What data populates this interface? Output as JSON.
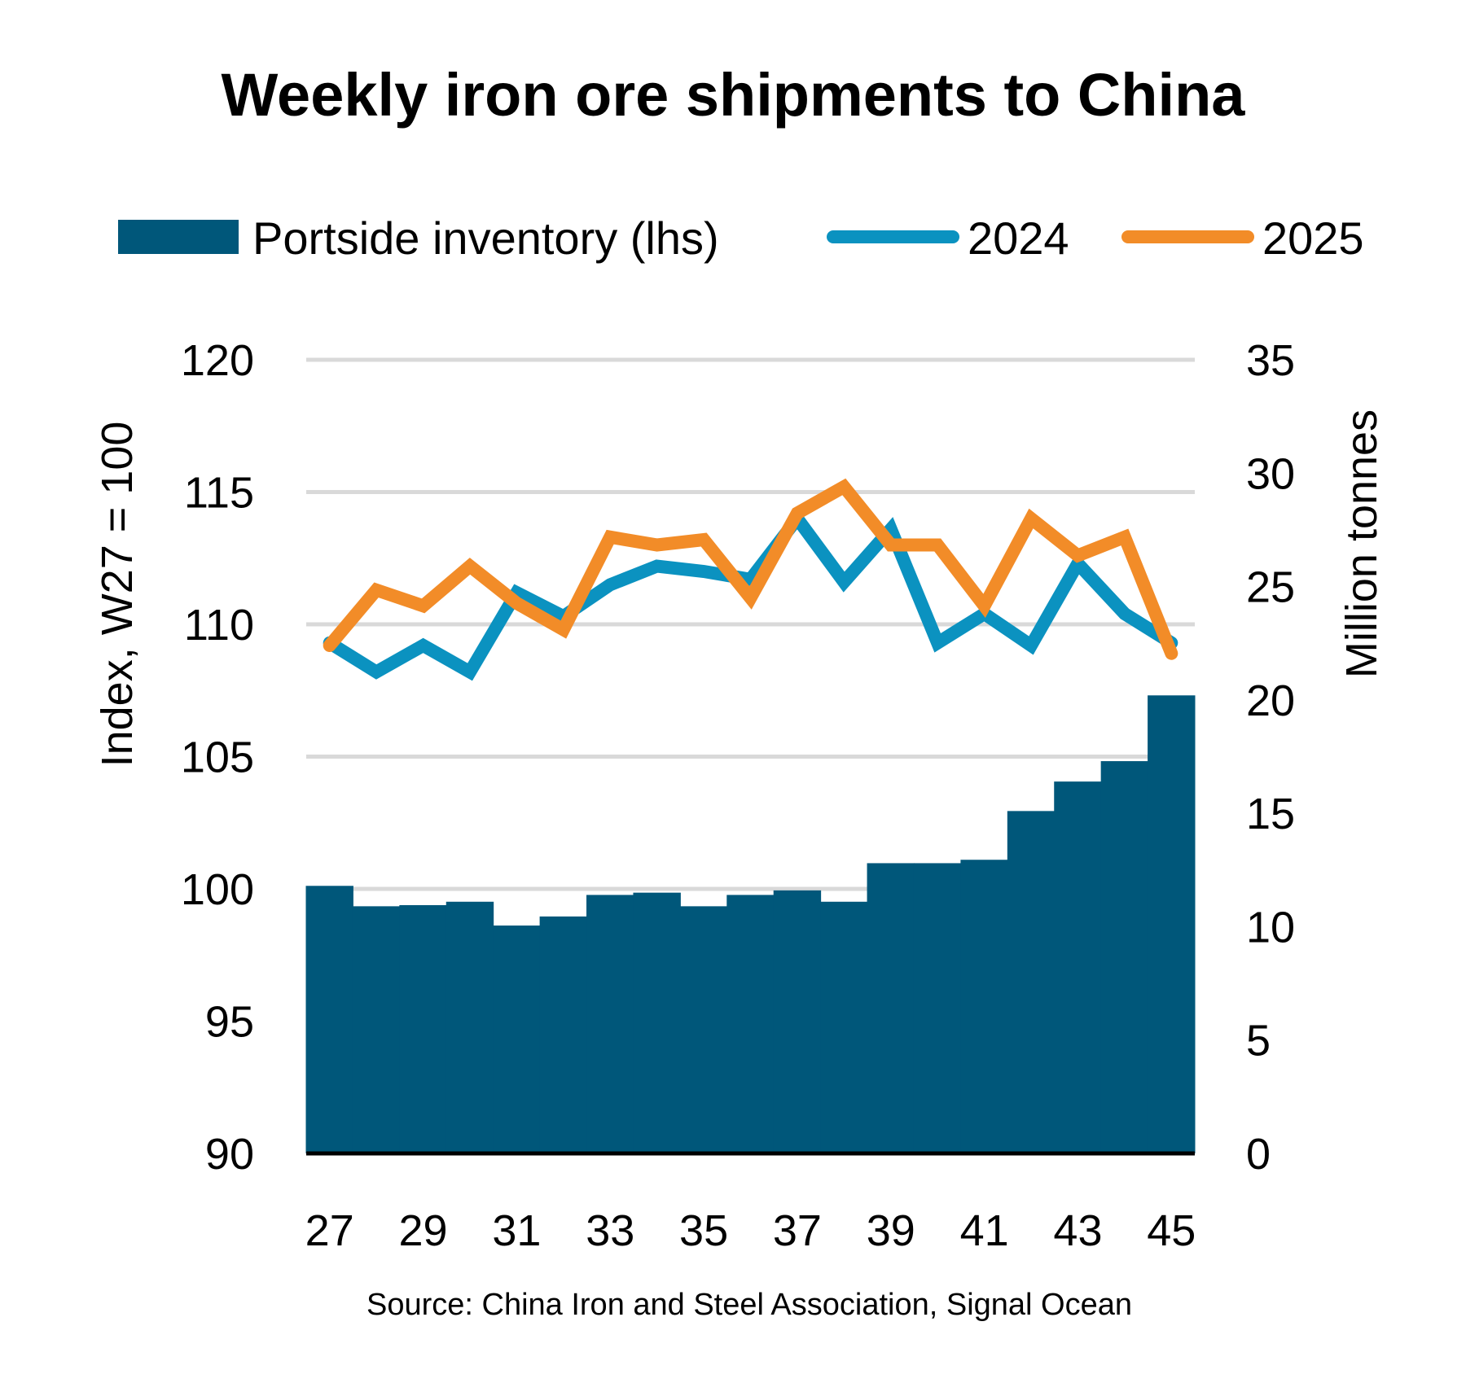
{
  "chart_data": {
    "type": "bar+line (dual axis)",
    "title": "Weekly iron ore shipments to China",
    "categories": [
      27,
      28,
      29,
      30,
      31,
      32,
      33,
      34,
      35,
      36,
      37,
      38,
      39,
      40,
      41,
      42,
      43,
      44,
      45
    ],
    "x_tick_labels": [
      "27",
      "29",
      "31",
      "33",
      "35",
      "37",
      "39",
      "41",
      "43",
      "45"
    ],
    "ylabel_left": "Index, W27 = 100",
    "ylabel_right": "Million tonnes",
    "ylim_left": [
      90,
      120
    ],
    "ylim_right": [
      0,
      35
    ],
    "yticks_left": [
      "90",
      "95",
      "100",
      "105",
      "110",
      "115",
      "120"
    ],
    "yticks_right": [
      "0",
      "5",
      "10",
      "15",
      "20",
      "25",
      "30",
      "35"
    ],
    "grid": true,
    "legend_position": "top",
    "series": [
      {
        "name": "Portside inventory (lhs)",
        "type": "bar",
        "axis": "right",
        "color": "#00577a",
        "values": [
          11.8,
          10.9,
          10.95,
          11.1,
          10.05,
          10.45,
          11.4,
          11.5,
          10.9,
          11.4,
          11.6,
          11.1,
          12.8,
          12.8,
          12.95,
          15.1,
          16.4,
          17.3,
          20.2
        ]
      },
      {
        "name": "2024",
        "type": "line",
        "axis": "left",
        "color": "#0b92c0",
        "values": [
          109.3,
          108.2,
          109.2,
          108.2,
          111.2,
          110.3,
          111.5,
          112.2,
          112.0,
          111.7,
          114.0,
          111.6,
          113.6,
          109.3,
          110.4,
          109.2,
          112.3,
          110.4,
          109.3
        ]
      },
      {
        "name": "2025",
        "type": "line",
        "axis": "left",
        "color": "#f28c28",
        "values": [
          109.2,
          111.3,
          110.7,
          112.2,
          110.8,
          109.8,
          113.3,
          113.0,
          113.2,
          111.0,
          114.2,
          115.2,
          113.0,
          113.0,
          110.7,
          114.0,
          112.6,
          113.3,
          108.9
        ]
      }
    ],
    "source": "Source: China Iron and Steel Association, Signal Ocean"
  }
}
